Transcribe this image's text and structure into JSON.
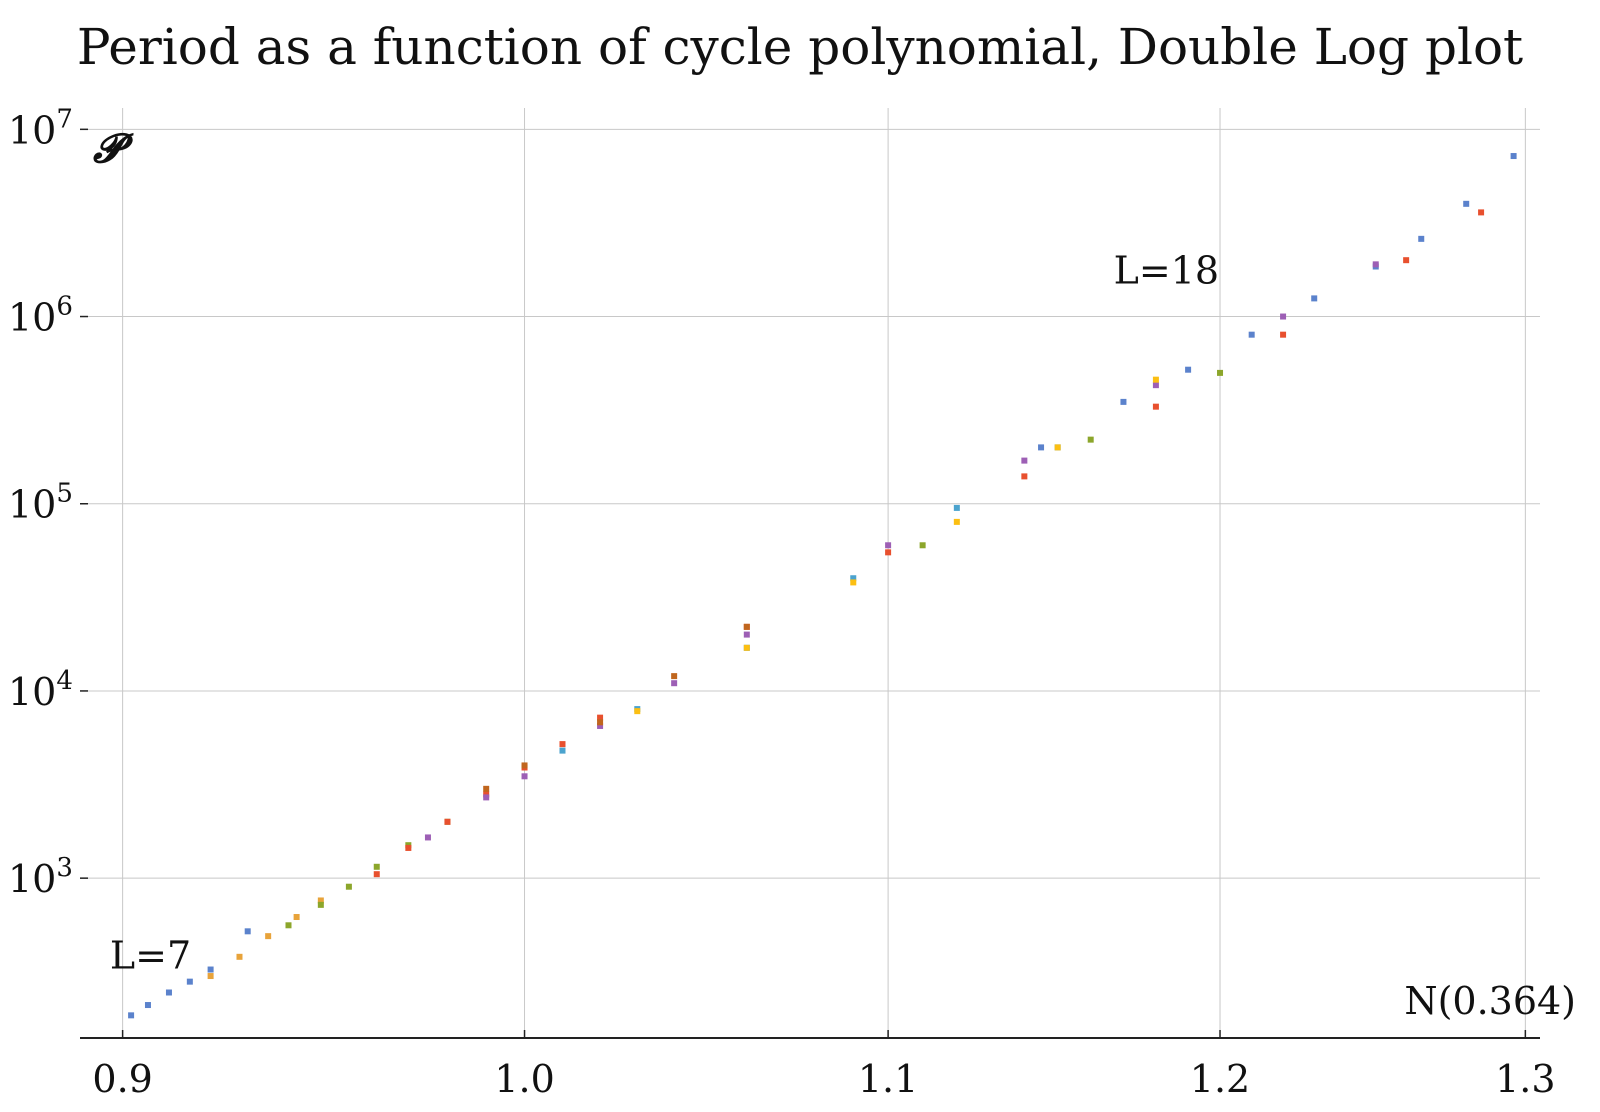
{
  "chart_data": {
    "type": "scatter",
    "title": "Period as a function of cycle polynomial, Double Log plot",
    "ylabel": "𝓟",
    "xlabel": "N(0.364)",
    "x_scale": "log",
    "y_scale": "log",
    "xlim": [
      0.89,
      1.305
    ],
    "ylim": [
      140,
      13000000
    ],
    "grid": true,
    "x_ticks": [
      {
        "value": 0.9,
        "label": "0.9"
      },
      {
        "value": 1.0,
        "label": "1.0"
      },
      {
        "value": 1.1,
        "label": "1.1"
      },
      {
        "value": 1.2,
        "label": "1.2"
      },
      {
        "value": 1.3,
        "label": "1.3"
      }
    ],
    "y_ticks": [
      {
        "value": 1000,
        "base": "10",
        "exp": "3"
      },
      {
        "value": 10000,
        "base": "10",
        "exp": "4"
      },
      {
        "value": 100000,
        "base": "10",
        "exp": "5"
      },
      {
        "value": 1000000,
        "base": "10",
        "exp": "6"
      },
      {
        "value": 10000000,
        "base": "10",
        "exp": "7"
      }
    ],
    "annotations": [
      {
        "text": "L=7",
        "x": 0.897,
        "y": 330
      },
      {
        "text": "L=18",
        "x": 1.167,
        "y": 1500000
      }
    ],
    "series": [
      {
        "color": "#5B82CC",
        "x": [
          0.902,
          0.906,
          0.911,
          0.916,
          0.921,
          0.93,
          1.145,
          1.17,
          1.19,
          1.21,
          1.23,
          1.25,
          1.265,
          1.28,
          1.296
        ],
        "y": [
          185,
          210,
          245,
          280,
          325,
          520,
          200000,
          350000,
          520000,
          800000,
          1250000,
          1850000,
          2600000,
          4000000,
          7200000
        ]
      },
      {
        "color": "#E8A33A",
        "x": [
          0.921,
          0.928,
          0.935,
          0.942,
          0.948
        ],
        "y": [
          300,
          380,
          490,
          620,
          760
        ]
      },
      {
        "color": "#8CA62B",
        "x": [
          0.94,
          0.948,
          0.955,
          0.962,
          0.97,
          0.98,
          1.11,
          1.16,
          1.2
        ],
        "y": [
          560,
          720,
          900,
          1150,
          1500,
          2000,
          60000,
          220000,
          500000
        ]
      },
      {
        "color": "#E8502E",
        "x": [
          0.962,
          0.97,
          0.98,
          0.99,
          1.0,
          1.01,
          1.02,
          1.06,
          1.1,
          1.14,
          1.18,
          1.22,
          1.26,
          1.285
        ],
        "y": [
          1050,
          1450,
          2000,
          2800,
          3900,
          5200,
          7200,
          22000,
          55000,
          140000,
          330000,
          800000,
          2000000,
          3600000
        ]
      },
      {
        "color": "#9D5FB5",
        "x": [
          0.975,
          0.99,
          1.0,
          1.02,
          1.04,
          1.06,
          1.1,
          1.14,
          1.18,
          1.22,
          1.25
        ],
        "y": [
          1650,
          2700,
          3500,
          6500,
          11000,
          20000,
          60000,
          170000,
          430000,
          1000000,
          1900000
        ]
      },
      {
        "color": "#C0661E",
        "x": [
          0.99,
          1.0,
          1.02,
          1.04,
          1.06
        ],
        "y": [
          3000,
          4000,
          6800,
          12000,
          22000
        ]
      },
      {
        "color": "#4BA3CE",
        "x": [
          1.01,
          1.03,
          1.06,
          1.09,
          1.12,
          1.15
        ],
        "y": [
          4800,
          8000,
          17000,
          40000,
          95000,
          200000
        ]
      },
      {
        "color": "#FCBF12",
        "x": [
          1.03,
          1.06,
          1.09,
          1.12,
          1.15,
          1.18
        ],
        "y": [
          7800,
          17000,
          38000,
          80000,
          200000,
          460000
        ]
      }
    ]
  }
}
